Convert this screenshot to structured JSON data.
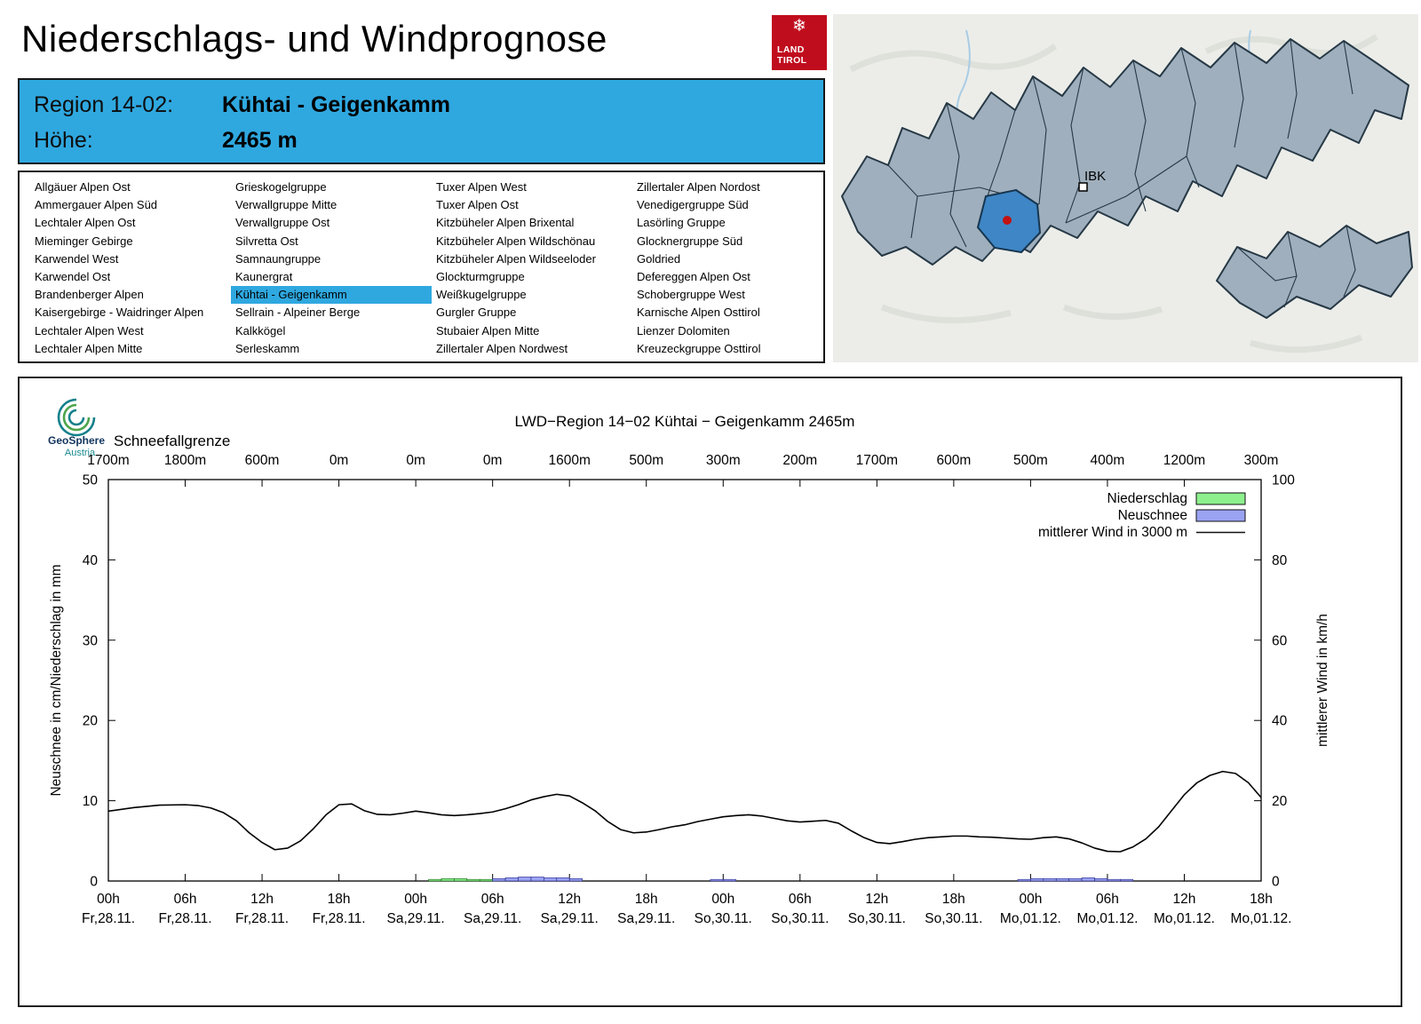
{
  "colors": {
    "accent_blue": "#2FA8E0",
    "logo_red": "#C00D1E",
    "map_gray": "#9FAFBD",
    "map_highlight": "#3E86C6",
    "marker_red": "#C41111",
    "precip_green": "#8DF08D",
    "snow_blue": "#9AA3F2",
    "wind_line": "#000000"
  },
  "header": {
    "title": "Niederschlags- und Windprognose",
    "logo_snowflake": "❄",
    "logo_line1": "LAND",
    "logo_line2": "TIROL"
  },
  "map": {
    "city_label": "IBK"
  },
  "region_info": {
    "region_label": "Region 14-02:",
    "region_value": "Kühtai - Geigenkamm",
    "altitude_label": "Höhe:",
    "altitude_value": "2465 m"
  },
  "region_list": {
    "selected": "Kühtai - Geigenkamm",
    "selected_index": {
      "col": 1,
      "row": 6
    },
    "columns": [
      [
        "Allgäuer Alpen Ost",
        "Ammergauer Alpen Süd",
        "Lechtaler Alpen Ost",
        "Mieminger Gebirge",
        "Karwendel West",
        "Karwendel Ost",
        "Brandenberger Alpen",
        "Kaisergebirge - Waidringer Alpen",
        "Lechtaler Alpen West",
        "Lechtaler Alpen Mitte"
      ],
      [
        "Grieskogelgruppe",
        "Verwallgruppe Mitte",
        "Verwallgruppe Ost",
        "Silvretta Ost",
        "Samnaungruppe",
        "Kaunergrat",
        "Kühtai - Geigenkamm",
        "Sellrain - Alpeiner Berge",
        "Kalkkögel",
        "Serleskamm"
      ],
      [
        "Tuxer Alpen West",
        "Tuxer Alpen Ost",
        "Kitzbüheler Alpen Brixental",
        "Kitzbüheler Alpen Wildschönau",
        "Kitzbüheler Alpen Wildseeloder",
        "Glockturmgruppe",
        "Weißkugelgruppe",
        "Gurgler Gruppe",
        "Stubaier Alpen Mitte",
        "Zillertaler Alpen Nordwest"
      ],
      [
        "Zillertaler Alpen Nordost",
        "Venedigergruppe Süd",
        "Lasörling Gruppe",
        "Glocknergruppe Süd",
        "Goldried",
        "Defereggen Alpen Ost",
        "Schobergruppe West",
        "Karnische Alpen Osttirol",
        "Lienzer Dolomiten",
        "Kreuzeckgruppe Osttirol"
      ]
    ]
  },
  "chart_brand": {
    "name": "GeoSphere",
    "country": "Austria"
  },
  "chart_data": {
    "type": "line",
    "title": "LWD−Region 14−02 Kühtai − Geigenkamm 2465m",
    "top_axis_label": "Schneefallgrenze",
    "top_axis_values": [
      "1700m",
      "1800m",
      "600m",
      "0m",
      "0m",
      "0m",
      "1600m",
      "500m",
      "300m",
      "200m",
      "1700m",
      "600m",
      "500m",
      "400m",
      "1200m",
      "300m"
    ],
    "ylabel_left": "Neuschnee in cm/Niederschlag in mm",
    "ylabel_right": "mittlerer Wind in km/h",
    "ylim_left": [
      0,
      50
    ],
    "ylim_right": [
      0,
      100
    ],
    "yticks_left": [
      0,
      10,
      20,
      30,
      40,
      50
    ],
    "yticks_right": [
      0,
      20,
      40,
      60,
      80,
      100
    ],
    "x_hours_total": 90,
    "x_major_step": 6,
    "x_tick_hours": [
      "00h",
      "06h",
      "12h",
      "18h",
      "00h",
      "06h",
      "12h",
      "18h",
      "00h",
      "06h",
      "12h",
      "18h",
      "00h",
      "06h",
      "12h",
      "18h"
    ],
    "x_tick_dates": [
      "Fr,28.11.",
      "Fr,28.11.",
      "Fr,28.11.",
      "Fr,28.11.",
      "Sa,29.11.",
      "Sa,29.11.",
      "Sa,29.11.",
      "Sa,29.11.",
      "So,30.11.",
      "So,30.11.",
      "So,30.11.",
      "So,30.11.",
      "Mo,01.12.",
      "Mo,01.12.",
      "Mo,01.12.",
      "Mo,01.12."
    ],
    "legend": [
      {
        "label": "Niederschlag",
        "type": "box",
        "fill": "#8DF08D",
        "stroke": "#111111"
      },
      {
        "label": "Neuschnee",
        "type": "box",
        "fill": "#9AA3F2",
        "stroke": "#111111"
      },
      {
        "label": "mittlerer Wind in 3000 m",
        "type": "line",
        "stroke": "#111111"
      }
    ],
    "series": [
      {
        "name": "mittlerer Wind in 3000 m",
        "unit": "km/h",
        "axis": "right",
        "points": [
          [
            0,
            17.4
          ],
          [
            2,
            18.3
          ],
          [
            4,
            18.9
          ],
          [
            6,
            19.0
          ],
          [
            7,
            18.8
          ],
          [
            8,
            18.2
          ],
          [
            9,
            17.0
          ],
          [
            10,
            15.0
          ],
          [
            11,
            12.0
          ],
          [
            12,
            9.6
          ],
          [
            13,
            7.8
          ],
          [
            14,
            8.2
          ],
          [
            15,
            10.0
          ],
          [
            16,
            13.0
          ],
          [
            17,
            16.5
          ],
          [
            18,
            19.0
          ],
          [
            19,
            19.2
          ],
          [
            20,
            17.5
          ],
          [
            21,
            16.6
          ],
          [
            22,
            16.5
          ],
          [
            23,
            16.9
          ],
          [
            24,
            17.4
          ],
          [
            25,
            17.0
          ],
          [
            26,
            16.5
          ],
          [
            27,
            16.3
          ],
          [
            28,
            16.5
          ],
          [
            29,
            16.8
          ],
          [
            30,
            17.2
          ],
          [
            31,
            18.0
          ],
          [
            32,
            19.0
          ],
          [
            33,
            20.2
          ],
          [
            34,
            21.0
          ],
          [
            35,
            21.6
          ],
          [
            36,
            21.2
          ],
          [
            37,
            19.5
          ],
          [
            38,
            17.5
          ],
          [
            39,
            14.8
          ],
          [
            40,
            12.8
          ],
          [
            41,
            12.0
          ],
          [
            42,
            12.2
          ],
          [
            43,
            12.8
          ],
          [
            44,
            13.5
          ],
          [
            45,
            14.0
          ],
          [
            46,
            14.8
          ],
          [
            47,
            15.4
          ],
          [
            48,
            16.0
          ],
          [
            49,
            16.3
          ],
          [
            50,
            16.5
          ],
          [
            51,
            16.2
          ],
          [
            52,
            15.6
          ],
          [
            53,
            15.0
          ],
          [
            54,
            14.7
          ],
          [
            55,
            14.9
          ],
          [
            56,
            15.1
          ],
          [
            57,
            14.4
          ],
          [
            58,
            12.5
          ],
          [
            59,
            10.8
          ],
          [
            60,
            9.6
          ],
          [
            61,
            9.3
          ],
          [
            62,
            9.8
          ],
          [
            63,
            10.4
          ],
          [
            64,
            10.8
          ],
          [
            65,
            11.0
          ],
          [
            66,
            11.2
          ],
          [
            67,
            11.2
          ],
          [
            68,
            11.0
          ],
          [
            69,
            10.9
          ],
          [
            70,
            10.7
          ],
          [
            71,
            10.5
          ],
          [
            72,
            10.4
          ],
          [
            73,
            10.8
          ],
          [
            74,
            11.0
          ],
          [
            75,
            10.5
          ],
          [
            76,
            9.5
          ],
          [
            77,
            8.2
          ],
          [
            78,
            7.4
          ],
          [
            79,
            7.3
          ],
          [
            80,
            8.5
          ],
          [
            81,
            10.5
          ],
          [
            82,
            13.5
          ],
          [
            83,
            17.5
          ],
          [
            84,
            21.5
          ],
          [
            85,
            24.5
          ],
          [
            86,
            26.3
          ],
          [
            87,
            27.3
          ],
          [
            88,
            26.8
          ],
          [
            89,
            24.5
          ],
          [
            90,
            20.8
          ]
        ]
      },
      {
        "name": "Niederschlag",
        "unit": "mm",
        "axis": "left",
        "bars": [
          [
            25,
            0.2
          ],
          [
            26,
            0.3
          ],
          [
            27,
            0.3
          ],
          [
            28,
            0.2
          ],
          [
            29,
            0.2
          ],
          [
            30,
            0.2
          ]
        ]
      },
      {
        "name": "Neuschnee",
        "unit": "cm",
        "axis": "left",
        "bars": [
          [
            30,
            0.3
          ],
          [
            31,
            0.4
          ],
          [
            32,
            0.5
          ],
          [
            33,
            0.5
          ],
          [
            34,
            0.4
          ],
          [
            35,
            0.4
          ],
          [
            36,
            0.3
          ],
          [
            47,
            0.2
          ],
          [
            48,
            0.2
          ],
          [
            71,
            0.2
          ],
          [
            72,
            0.3
          ],
          [
            73,
            0.3
          ],
          [
            74,
            0.3
          ],
          [
            75,
            0.3
          ],
          [
            76,
            0.4
          ],
          [
            77,
            0.3
          ],
          [
            78,
            0.2
          ],
          [
            79,
            0.2
          ]
        ]
      }
    ]
  }
}
